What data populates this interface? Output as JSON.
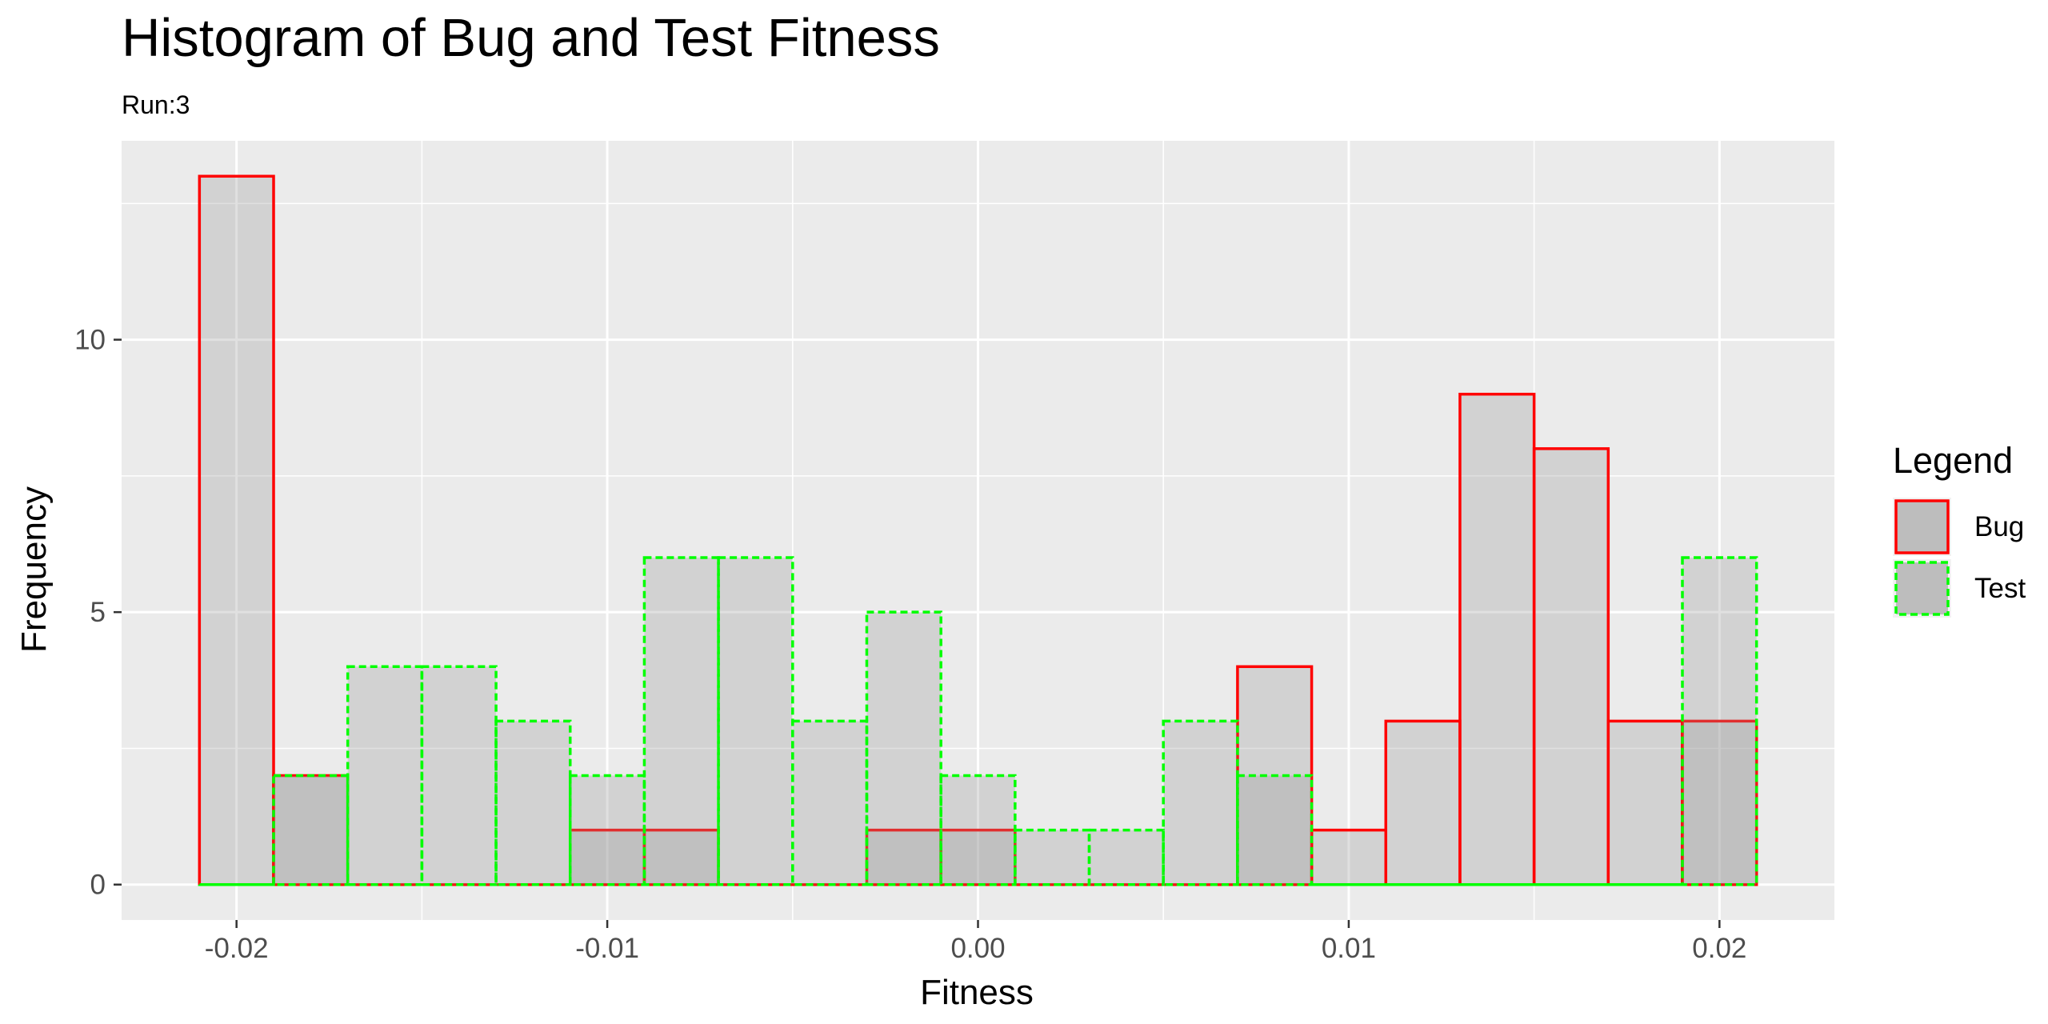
{
  "chart_data": {
    "type": "bar",
    "subtype": "overlaid-histogram",
    "title": "Histogram of Bug and Test Fitness",
    "subtitle": "Run:3",
    "xlabel": "Fitness",
    "ylabel": "Frequency",
    "xlim": [
      -0.0231,
      0.0231
    ],
    "ylim": [
      -0.65,
      13.65
    ],
    "xticks": [
      -0.02,
      -0.01,
      0.0,
      0.01,
      0.02
    ],
    "xtick_labels": [
      "-0.02",
      "-0.01",
      "0.00",
      "0.01",
      "0.02"
    ],
    "yticks": [
      0,
      5,
      10
    ],
    "ytick_labels": [
      "0",
      "5",
      "10"
    ],
    "bin_width": 0.002,
    "bin_centers": [
      -0.02,
      -0.018,
      -0.016,
      -0.014,
      -0.012,
      -0.01,
      -0.008,
      -0.006,
      -0.004,
      -0.002,
      0.0,
      0.002,
      0.004,
      0.006,
      0.008,
      0.01,
      0.012,
      0.014,
      0.016,
      0.018,
      0.02
    ],
    "series": [
      {
        "name": "Bug",
        "values": [
          13,
          2,
          0,
          0,
          0,
          1,
          1,
          0,
          0,
          1,
          1,
          0,
          0,
          0,
          4,
          1,
          3,
          9,
          8,
          3,
          3
        ],
        "stroke": "#ff0000",
        "dash": "solid"
      },
      {
        "name": "Test",
        "values": [
          0,
          2,
          4,
          4,
          3,
          2,
          6,
          6,
          3,
          5,
          2,
          1,
          1,
          3,
          2,
          0,
          0,
          0,
          0,
          0,
          6
        ],
        "stroke": "#00ff00",
        "dash": "dashed"
      }
    ],
    "fill_color": "#999999",
    "fill_alpha": 0.3,
    "panel_background": "#ebebeb",
    "grid": true,
    "legend": {
      "title": "Legend",
      "placement": "right",
      "entries": [
        "Bug",
        "Test"
      ]
    }
  }
}
